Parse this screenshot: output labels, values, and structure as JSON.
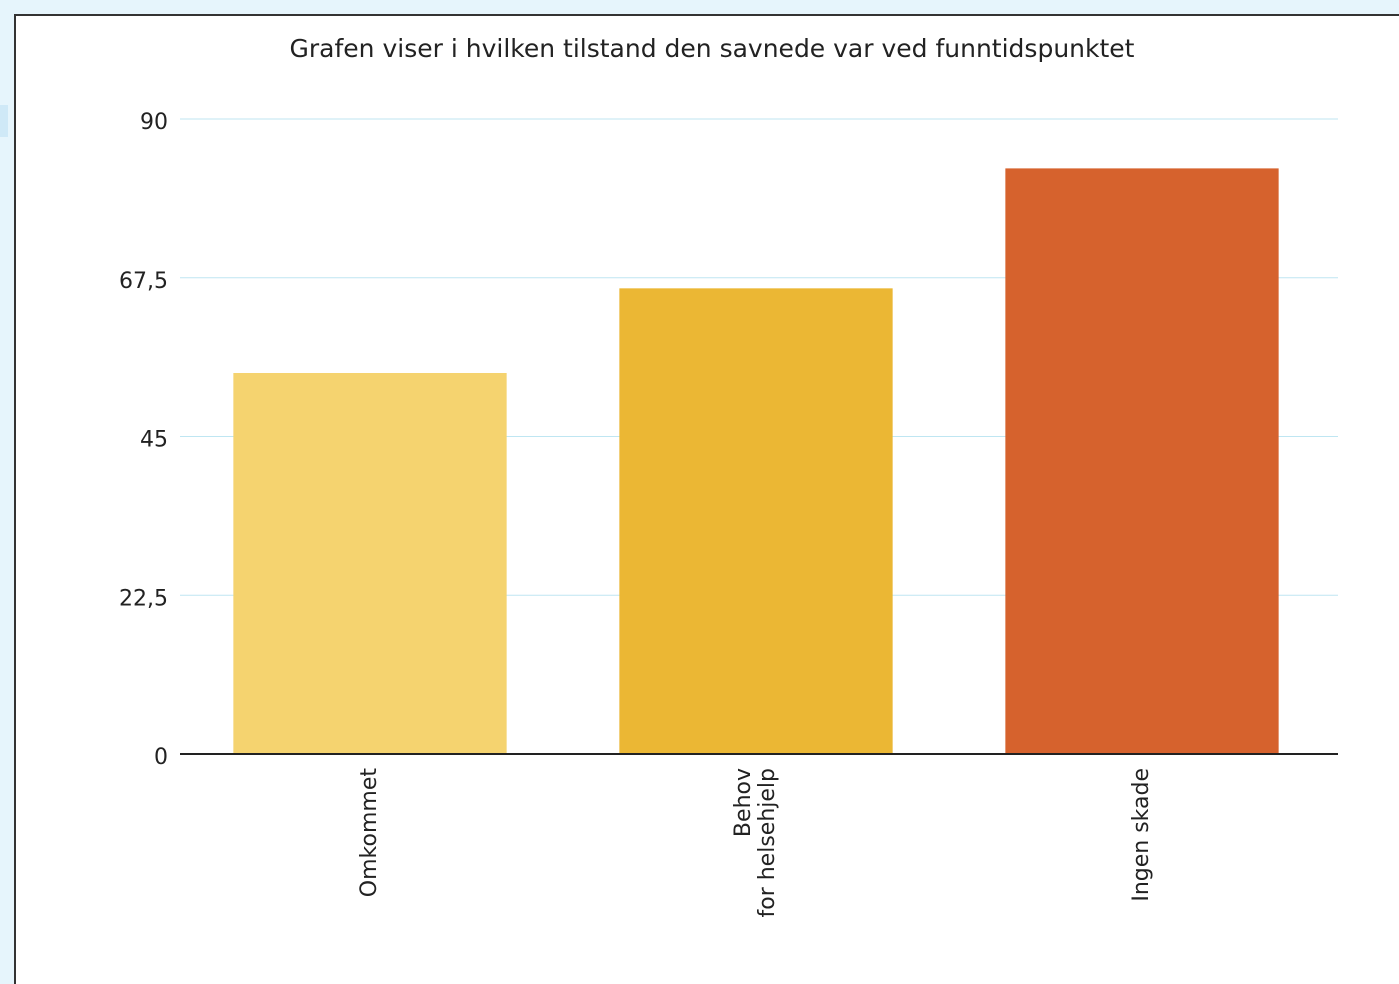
{
  "chart_data": {
    "type": "bar",
    "title": "Grafen viser i hvilken tilstand den savnede var ved funntidspunktet",
    "categories": [
      "Omkommet",
      "Behov\nfor helsehjelp",
      "Ingen skade"
    ],
    "values": [
      54,
      66,
      83
    ],
    "colors": [
      "#f5d36f",
      "#ebb734",
      "#d6622d"
    ],
    "ylim": [
      0,
      90
    ],
    "yticks": [
      0,
      {
        "value": 22.5,
        "label": "22,5"
      },
      45,
      {
        "value": 67.5,
        "label": "67,5"
      },
      90
    ],
    "grid": true
  }
}
